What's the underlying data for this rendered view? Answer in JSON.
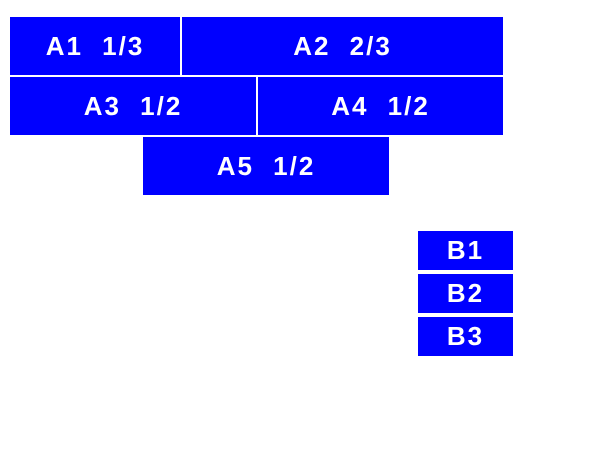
{
  "colors": {
    "box_fill": "#0000ff",
    "box_text": "#ffffff",
    "page_background": "#ffffff"
  },
  "group_a": {
    "a1": {
      "label": "A1 1/3",
      "fraction": "1/3"
    },
    "a2": {
      "label": "A2 2/3",
      "fraction": "2/3"
    },
    "a3": {
      "label": "A3 1/2",
      "fraction": "1/2"
    },
    "a4": {
      "label": "A4 1/2",
      "fraction": "1/2"
    },
    "a5": {
      "label": "A5 1/2",
      "fraction": "1/2"
    }
  },
  "group_b": {
    "b1": {
      "label": "B1"
    },
    "b2": {
      "label": "B2"
    },
    "b3": {
      "label": "B3"
    }
  }
}
